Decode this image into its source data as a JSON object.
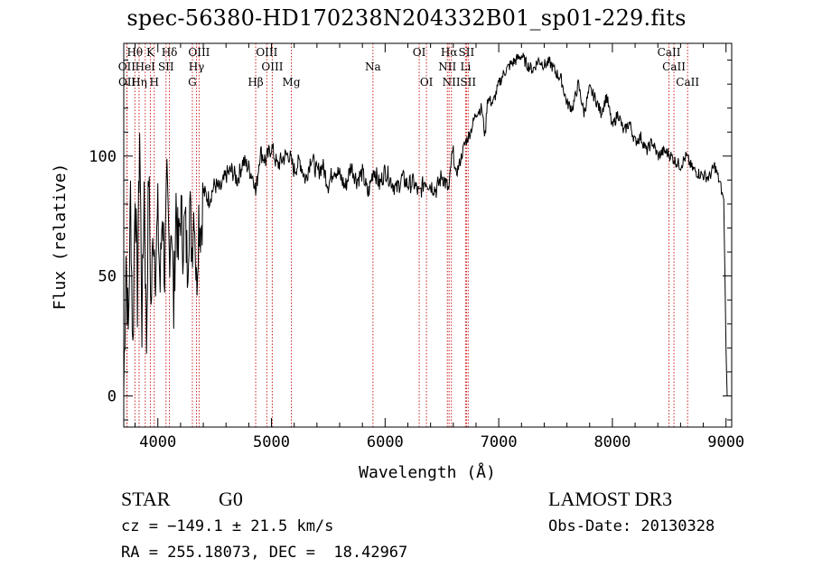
{
  "chart_data": {
    "type": "line",
    "title": "spec-56380-HD170238N204332B01_sp01-229.fits",
    "xlabel": "Wavelength (Å)",
    "ylabel": "Flux (relative)",
    "xlim": [
      3700,
      9050
    ],
    "ylim": [
      -13,
      147
    ],
    "xticks": [
      4000,
      5000,
      6000,
      7000,
      8000,
      9000
    ],
    "yticks": [
      0,
      50,
      100
    ],
    "grid": false,
    "series": [
      {
        "name": "spectrum",
        "x": [
          3700,
          3720,
          3740,
          3760,
          3780,
          3800,
          3820,
          3840,
          3860,
          3880,
          3900,
          3920,
          3940,
          3960,
          3980,
          4000,
          4020,
          4040,
          4060,
          4080,
          4100,
          4120,
          4140,
          4160,
          4180,
          4200,
          4220,
          4240,
          4260,
          4280,
          4300,
          4320,
          4340,
          4360,
          4380,
          4400,
          4450,
          4500,
          4550,
          4600,
          4650,
          4700,
          4750,
          4800,
          4850,
          4861,
          4900,
          4950,
          5000,
          5050,
          5100,
          5150,
          5200,
          5250,
          5300,
          5350,
          5400,
          5450,
          5500,
          5550,
          5600,
          5650,
          5700,
          5750,
          5800,
          5850,
          5900,
          5950,
          6000,
          6050,
          6100,
          6150,
          6200,
          6250,
          6300,
          6350,
          6400,
          6450,
          6500,
          6540,
          6563,
          6580,
          6600,
          6620,
          6650,
          6700,
          6750,
          6800,
          6850,
          6880,
          6900,
          6950,
          7000,
          7050,
          7100,
          7150,
          7200,
          7250,
          7300,
          7350,
          7400,
          7450,
          7500,
          7550,
          7600,
          7650,
          7700,
          7750,
          7800,
          7850,
          7900,
          7950,
          8000,
          8050,
          8100,
          8150,
          8200,
          8250,
          8300,
          8350,
          8400,
          8450,
          8500,
          8550,
          8600,
          8650,
          8700,
          8750,
          8800,
          8850,
          8900,
          8950,
          8980,
          9000,
          9010
        ],
        "y": [
          2,
          60,
          25,
          85,
          18,
          90,
          40,
          112,
          30,
          88,
          22,
          95,
          35,
          70,
          55,
          75,
          45,
          80,
          50,
          86,
          60,
          75,
          35,
          82,
          58,
          78,
          65,
          72,
          55,
          80,
          62,
          82,
          45,
          76,
          70,
          85,
          82,
          88,
          86,
          92,
          94,
          90,
          98,
          95,
          90,
          84,
          102,
          98,
          104,
          96,
          99,
          101,
          94,
          98,
          90,
          100,
          93,
          96,
          88,
          95,
          92,
          87,
          96,
          90,
          93,
          84,
          95,
          88,
          94,
          90,
          86,
          91,
          88,
          89,
          84,
          90,
          88,
          86,
          92,
          88,
          85,
          97,
          102,
          92,
          96,
          105,
          110,
          118,
          120,
          108,
          124,
          122,
          130,
          135,
          138,
          140,
          142,
          138,
          136,
          140,
          138,
          139,
          135,
          132,
          122,
          120,
          130,
          118,
          128,
          124,
          118,
          125,
          112,
          118,
          110,
          114,
          106,
          108,
          102,
          106,
          100,
          102,
          101,
          98,
          96,
          100,
          95,
          93,
          92,
          91,
          96,
          88,
          82,
          20,
          0
        ]
      }
    ],
    "line_labels": [
      {
        "text": "Hθ",
        "x": 3798,
        "row": 1
      },
      {
        "text": "K",
        "x": 3934,
        "row": 1
      },
      {
        "text": "Hδ",
        "x": 4102,
        "row": 1
      },
      {
        "text": "OIII",
        "x": 4363,
        "row": 1
      },
      {
        "text": "OIII",
        "x": 4959,
        "row": 1
      },
      {
        "text": "OI",
        "x": 6300,
        "row": 1
      },
      {
        "text": "Hα",
        "x": 6563,
        "row": 1
      },
      {
        "text": "SII",
        "x": 6716,
        "row": 1
      },
      {
        "text": "CaII",
        "x": 8498,
        "row": 1
      },
      {
        "text": "OII",
        "x": 3727,
        "row": 2
      },
      {
        "text": "HeI",
        "x": 3889,
        "row": 2
      },
      {
        "text": "SII",
        "x": 4072,
        "row": 2
      },
      {
        "text": "Hγ",
        "x": 4340,
        "row": 2
      },
      {
        "text": "OIII",
        "x": 5007,
        "row": 2
      },
      {
        "text": "Na",
        "x": 5893,
        "row": 2
      },
      {
        "text": "NII",
        "x": 6548,
        "row": 2
      },
      {
        "text": "Li",
        "x": 6708,
        "row": 2
      },
      {
        "text": "CaII",
        "x": 8542,
        "row": 2
      },
      {
        "text": "OII",
        "x": 3729,
        "row": 3
      },
      {
        "text": "Hη",
        "x": 3835,
        "row": 3
      },
      {
        "text": "H",
        "x": 3968,
        "row": 3
      },
      {
        "text": "G",
        "x": 4304,
        "row": 3
      },
      {
        "text": "Hβ",
        "x": 4861,
        "row": 3
      },
      {
        "text": "Mg",
        "x": 5175,
        "row": 3
      },
      {
        "text": "OI",
        "x": 6364,
        "row": 3
      },
      {
        "text": "NII",
        "x": 6583,
        "row": 3
      },
      {
        "text": "SII",
        "x": 6731,
        "row": 3
      },
      {
        "text": "CaII",
        "x": 8662,
        "row": 3
      }
    ],
    "line_markers": [
      3727,
      3729,
      3798,
      3835,
      3889,
      3934,
      3968,
      4072,
      4102,
      4304,
      4340,
      4363,
      4861,
      4959,
      5007,
      5175,
      5893,
      6300,
      6364,
      6548,
      6563,
      6583,
      6708,
      6716,
      6731,
      8498,
      8542,
      8662
    ],
    "marker_color": "#cc2222"
  },
  "info": {
    "class": "STAR",
    "subclass": "G0",
    "survey": "LAMOST DR3",
    "cz": "cz = −149.1 ± 21.5 km/s",
    "obs_date": "Obs-Date: 20130328",
    "radec": "RA = 255.18073, DEC =  18.42967"
  }
}
